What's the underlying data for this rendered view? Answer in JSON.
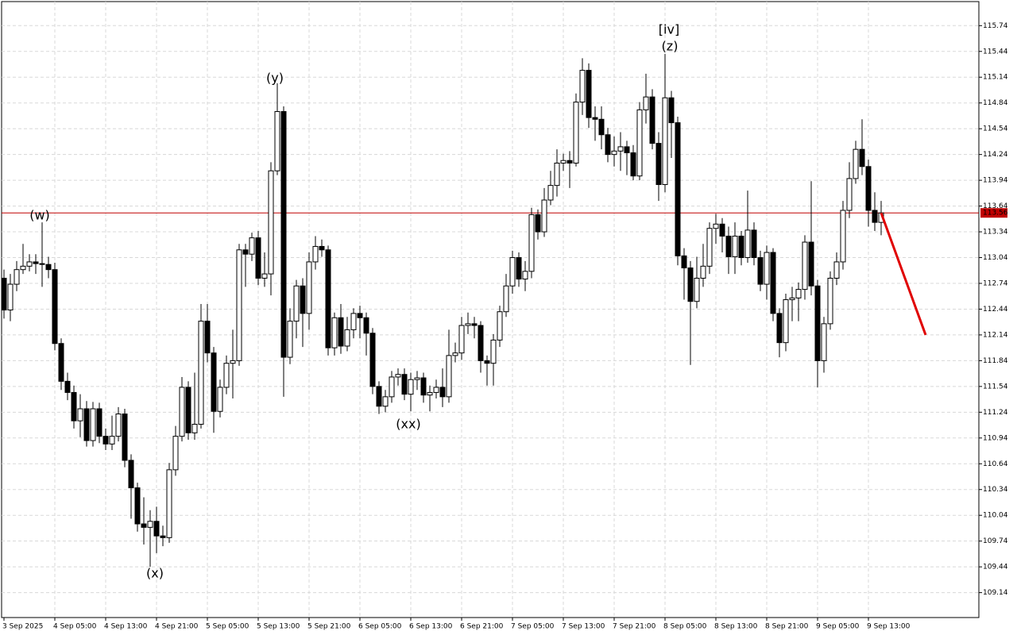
{
  "chart_data": {
    "type": "candlestick",
    "categories": [
      "3 Sep 2025",
      null,
      null,
      null,
      null,
      null,
      null,
      null,
      "4 Sep 05:00",
      null,
      null,
      null,
      null,
      null,
      null,
      null,
      "4 Sep 13:00",
      null,
      null,
      null,
      null,
      null,
      null,
      null,
      "4 Sep 21:00",
      null,
      null,
      null,
      null,
      null,
      null,
      null,
      "5 Sep 05:00",
      null,
      null,
      null,
      null,
      null,
      null,
      null,
      "5 Sep 13:00",
      null,
      null,
      null,
      null,
      null,
      null,
      null,
      "5 Sep 21:00",
      null,
      null,
      null,
      null,
      null,
      null,
      null,
      "6 Sep 05:00",
      null,
      null,
      null,
      null,
      null,
      null,
      null,
      "6 Sep 13:00",
      null,
      null,
      null,
      null,
      null,
      null,
      null,
      "6 Sep 21:00",
      null,
      null,
      null,
      null,
      null,
      null,
      null,
      "7 Sep 05:00",
      null,
      null,
      null,
      null,
      null,
      null,
      null,
      "7 Sep 13:00",
      null,
      null,
      null,
      null,
      null,
      null,
      null,
      "7 Sep 21:00",
      null,
      null,
      null,
      null,
      null,
      null,
      null,
      "8 Sep 05:00",
      null,
      null,
      null,
      null,
      null,
      null,
      null,
      "8 Sep 13:00",
      null,
      null,
      null,
      null,
      null,
      null,
      null,
      "8 Sep 21:00",
      null,
      null,
      null,
      null,
      null,
      null,
      null,
      "9 Sep 05:00",
      null,
      null,
      null,
      null,
      null,
      null,
      null,
      "9 Sep 13:00",
      null,
      null
    ],
    "open": [
      112.8,
      112.43,
      112.73,
      112.9,
      112.94,
      112.99,
      112.97,
      112.96,
      112.9,
      112.04,
      111.6,
      111.47,
      111.14,
      111.28,
      110.91,
      111.28,
      110.96,
      110.87,
      110.96,
      111.22,
      110.68,
      110.36,
      109.94,
      109.9,
      109.97,
      109.8,
      109.78,
      110.57,
      110.96,
      111.53,
      111.0,
      111.1,
      112.3,
      111.93,
      111.25,
      111.53,
      111.81,
      111.84,
      113.13,
      113.08,
      113.27,
      112.8,
      112.85,
      114.05,
      114.74,
      111.88,
      112.3,
      112.71,
      112.39,
      112.99,
      113.17,
      113.13,
      111.99,
      112.34,
      112.01,
      112.2,
      112.39,
      112.34,
      112.16,
      111.54,
      111.31,
      111.42,
      111.65,
      111.68,
      111.45,
      111.62,
      111.64,
      111.44,
      111.47,
      111.53,
      111.42,
      111.9,
      111.93,
      112.25,
      112.27,
      112.25,
      111.84,
      111.81,
      112.08,
      112.41,
      112.71,
      113.04,
      112.79,
      112.88,
      113.54,
      113.34,
      113.71,
      113.88,
      114.14,
      114.17,
      114.14,
      114.85,
      115.22,
      114.67,
      114.65,
      114.47,
      114.24,
      114.28,
      114.33,
      114.26,
      113.99,
      114.76,
      114.91,
      114.37,
      113.89,
      114.9,
      114.61,
      113.06,
      112.92,
      112.53,
      112.8,
      112.94,
      113.38,
      113.43,
      113.29,
      113.05,
      113.29,
      113.04,
      113.36,
      113.04,
      112.73,
      113.1,
      112.39,
      112.05,
      112.55,
      112.57,
      112.67,
      113.22,
      112.71,
      111.84,
      112.27,
      112.8,
      112.99,
      113.59,
      113.96,
      114.3,
      114.1,
      113.59,
      113.45
    ],
    "high": [
      112.9,
      112.85,
      113.0,
      113.2,
      113.08,
      113.08,
      113.45,
      113.05,
      112.98,
      112.1,
      111.7,
      111.55,
      111.45,
      111.37,
      111.36,
      111.35,
      111.05,
      111.2,
      111.3,
      111.28,
      110.75,
      110.42,
      110.25,
      110.1,
      110.14,
      109.92,
      110.65,
      111.08,
      111.65,
      111.6,
      111.7,
      112.5,
      112.5,
      112.0,
      111.62,
      111.9,
      112.2,
      113.2,
      113.2,
      113.33,
      113.35,
      113.1,
      114.15,
      115.07,
      114.8,
      112.45,
      112.78,
      112.8,
      113.1,
      113.29,
      113.25,
      113.18,
      112.4,
      112.5,
      112.35,
      112.45,
      112.48,
      112.4,
      112.22,
      111.6,
      111.5,
      111.72,
      111.75,
      111.75,
      111.7,
      111.72,
      111.7,
      111.55,
      111.62,
      111.75,
      112.2,
      112.05,
      112.35,
      112.4,
      112.35,
      112.3,
      111.9,
      112.15,
      112.48,
      112.85,
      113.12,
      113.1,
      113.0,
      113.62,
      113.6,
      113.85,
      114.05,
      114.3,
      114.25,
      114.28,
      114.95,
      115.36,
      115.3,
      114.8,
      114.8,
      114.55,
      114.45,
      114.5,
      114.4,
      114.35,
      114.85,
      115.18,
      115.0,
      114.5,
      115.41,
      114.98,
      114.68,
      113.15,
      113.0,
      113.05,
      113.2,
      113.45,
      113.55,
      113.5,
      113.4,
      113.45,
      113.35,
      113.82,
      113.45,
      113.12,
      113.18,
      113.15,
      112.45,
      112.62,
      112.7,
      112.75,
      113.3,
      113.93,
      112.78,
      112.35,
      112.88,
      113.1,
      113.7,
      114.15,
      114.4,
      114.65,
      114.18,
      113.8,
      113.7
    ],
    "low": [
      112.33,
      112.3,
      112.65,
      112.85,
      112.88,
      112.85,
      112.7,
      112.8,
      111.96,
      111.5,
      111.38,
      111.05,
      110.95,
      110.84,
      110.84,
      110.88,
      110.8,
      110.8,
      110.9,
      110.6,
      110.0,
      109.85,
      109.7,
      109.44,
      109.6,
      109.68,
      109.72,
      110.5,
      110.9,
      110.92,
      110.92,
      111.05,
      111.82,
      111.0,
      111.18,
      111.45,
      111.4,
      111.78,
      112.7,
      113.0,
      112.72,
      112.7,
      112.6,
      114.0,
      111.42,
      111.8,
      112.1,
      112.0,
      112.2,
      112.9,
      113.05,
      111.9,
      111.9,
      111.92,
      111.95,
      112.1,
      112.1,
      111.9,
      111.45,
      111.22,
      111.24,
      111.35,
      111.55,
      111.38,
      111.25,
      111.5,
      111.35,
      111.25,
      111.4,
      111.3,
      111.35,
      111.82,
      111.85,
      112.15,
      112.1,
      111.7,
      111.55,
      111.55,
      112.0,
      112.35,
      112.62,
      112.7,
      112.65,
      112.8,
      113.25,
      113.28,
      113.65,
      113.75,
      114.05,
      113.85,
      114.1,
      114.7,
      114.55,
      114.4,
      114.3,
      114.15,
      114.1,
      114.05,
      114.0,
      113.94,
      113.94,
      114.6,
      114.3,
      113.7,
      113.8,
      114.2,
      112.95,
      112.55,
      111.79,
      112.45,
      112.7,
      112.85,
      113.2,
      113.1,
      112.85,
      112.85,
      112.95,
      112.98,
      112.95,
      112.65,
      112.55,
      112.3,
      111.88,
      111.95,
      112.3,
      112.3,
      112.55,
      112.6,
      111.53,
      111.7,
      112.2,
      112.72,
      112.9,
      113.5,
      113.9,
      114.0,
      113.4,
      113.35,
      113.3
    ],
    "close": [
      112.43,
      112.73,
      112.9,
      112.94,
      112.99,
      112.97,
      112.96,
      112.9,
      112.04,
      111.6,
      111.47,
      111.14,
      111.28,
      110.91,
      111.28,
      110.96,
      110.87,
      110.96,
      111.22,
      110.68,
      110.36,
      109.94,
      109.9,
      109.97,
      109.8,
      109.78,
      110.57,
      110.96,
      111.53,
      111.0,
      111.1,
      112.3,
      111.93,
      111.25,
      111.53,
      111.81,
      111.84,
      113.13,
      113.08,
      113.27,
      112.8,
      112.85,
      114.05,
      114.74,
      111.88,
      112.3,
      112.71,
      112.39,
      112.99,
      113.17,
      113.13,
      111.99,
      112.34,
      112.01,
      112.2,
      112.39,
      112.34,
      112.16,
      111.54,
      111.31,
      111.42,
      111.65,
      111.68,
      111.45,
      111.62,
      111.64,
      111.44,
      111.47,
      111.53,
      111.42,
      111.9,
      111.93,
      112.25,
      112.27,
      112.25,
      111.84,
      111.81,
      112.08,
      112.41,
      112.71,
      113.04,
      112.79,
      112.88,
      113.54,
      113.34,
      113.71,
      113.88,
      114.14,
      114.17,
      114.14,
      114.85,
      115.22,
      114.67,
      114.65,
      114.47,
      114.24,
      114.28,
      114.33,
      114.26,
      113.99,
      114.76,
      114.91,
      114.37,
      113.89,
      114.9,
      114.61,
      113.06,
      112.92,
      112.53,
      112.8,
      112.94,
      113.38,
      113.43,
      113.29,
      113.05,
      113.29,
      113.04,
      113.36,
      113.04,
      112.73,
      113.1,
      112.39,
      112.05,
      112.55,
      112.57,
      112.67,
      113.22,
      112.71,
      111.84,
      112.27,
      112.8,
      112.99,
      113.59,
      113.96,
      114.3,
      114.1,
      113.59,
      113.45,
      113.56
    ],
    "up_color": "#ffffff",
    "down_color": "#000000",
    "ylim": [
      108.85,
      116.02
    ],
    "yticks": [
      109.14,
      109.44,
      109.74,
      110.04,
      110.34,
      110.64,
      110.94,
      111.24,
      111.54,
      111.84,
      112.14,
      112.44,
      112.74,
      113.04,
      113.34,
      113.64,
      113.94,
      114.24,
      114.54,
      114.84,
      115.14,
      115.44,
      115.74
    ],
    "grid": true,
    "price_line": {
      "value": 113.56,
      "color": "#c00000"
    },
    "forecast": {
      "x": [
        138,
        145
      ],
      "values": [
        113.56,
        112.14
      ],
      "color": "#e00000"
    },
    "annotations": [
      {
        "text": "(w)",
        "color": "#2020d0"
      },
      {
        "text": "(x)",
        "color": "#2020d0"
      },
      {
        "text": "(y)",
        "color": "#2020d0"
      },
      {
        "text": "(xx)",
        "color": "#2020d0"
      },
      {
        "text": "[iv]",
        "color": "#33bb33"
      },
      {
        "text": "(z)",
        "color": "#2020d0"
      }
    ]
  }
}
